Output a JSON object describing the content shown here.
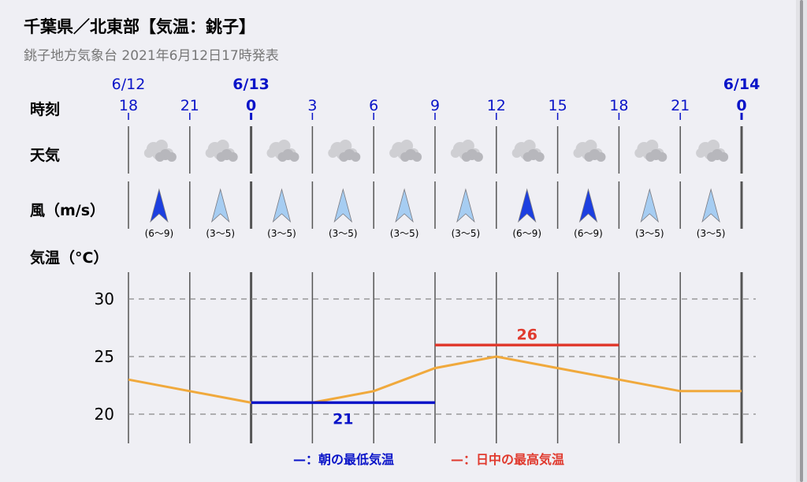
{
  "header": {
    "title": "千葉県／北東部【気温：銚子】",
    "subtitle": "銚子地方気象台 2021年6月12日17時発表"
  },
  "rows": {
    "time_label": "時刻",
    "weather_label": "天気",
    "wind_label": "風（m/s）",
    "temp_label": "気温（°C）"
  },
  "chart_data": {
    "type": "line",
    "dates": [
      {
        "label": "6/12",
        "at_index": 0,
        "bold": false
      },
      {
        "label": "6/13",
        "at_index": 2,
        "bold": true
      },
      {
        "label": "6/14",
        "at_index": 10,
        "bold": true
      }
    ],
    "hours": [
      "18",
      "21",
      "0",
      "3",
      "6",
      "9",
      "12",
      "15",
      "18",
      "21",
      "0"
    ],
    "hour_bold": [
      false,
      false,
      true,
      false,
      false,
      false,
      false,
      false,
      false,
      false,
      true
    ],
    "weather": [
      "cloudy",
      "cloudy",
      "cloudy",
      "cloudy",
      "cloudy",
      "cloudy",
      "cloudy",
      "cloudy",
      "cloudy",
      "cloudy"
    ],
    "wind": [
      {
        "range": "(6〜9)",
        "strong": true
      },
      {
        "range": "(3〜5)",
        "strong": false
      },
      {
        "range": "(3〜5)",
        "strong": false
      },
      {
        "range": "(3〜5)",
        "strong": false
      },
      {
        "range": "(3〜5)",
        "strong": false
      },
      {
        "range": "(3〜5)",
        "strong": false
      },
      {
        "range": "(6〜9)",
        "strong": true
      },
      {
        "range": "(6〜9)",
        "strong": true
      },
      {
        "range": "(3〜5)",
        "strong": false
      },
      {
        "range": "(3〜5)",
        "strong": false
      }
    ],
    "temperature": [
      23,
      22,
      21,
      21,
      22,
      24,
      25,
      24,
      23,
      22,
      22
    ],
    "yticks": [
      20,
      25,
      30
    ],
    "ylim": [
      18,
      32.5
    ],
    "min_temp": {
      "value": 21,
      "label": "21",
      "from_index": 2,
      "to_index": 5
    },
    "max_temp": {
      "value": 26,
      "label": "26",
      "from_index": 5,
      "to_index": 8
    },
    "legend": {
      "min_label": "—：朝の最低気温",
      "max_label": "—：日中の最高気温"
    }
  },
  "colors": {
    "blue": "#0a14c8",
    "red": "#e03a2e",
    "line": "#f0a93c",
    "axis": "#555555",
    "grid": "#888888",
    "arrow_strong": "#1c3fe0",
    "arrow_weak": "#a6cdf2"
  }
}
